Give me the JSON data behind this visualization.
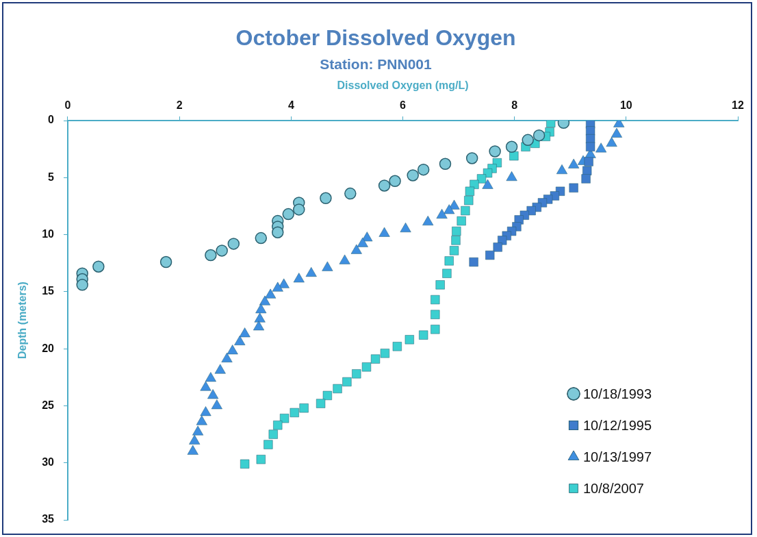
{
  "chart_data": {
    "type": "scatter",
    "title": "October Dissolved Oxygen",
    "subtitle": "Station: PNN001",
    "xlabel": "Dissolved Oxygen (mg/L)",
    "ylabel": "Depth (meters)",
    "xlim": [
      0,
      12
    ],
    "xticks": [
      0,
      2,
      4,
      6,
      8,
      10,
      12
    ],
    "ylim": [
      35,
      0
    ],
    "yticks": [
      0,
      5,
      10,
      15,
      20,
      25,
      30,
      35
    ],
    "grid": false,
    "legend": "bottom right",
    "series": [
      {
        "name": "10/18/1993",
        "color": "#7ec8d8",
        "marker": "circle",
        "x": [
          8.88,
          8.44,
          8.24,
          7.95,
          7.65,
          7.24,
          6.76,
          6.37,
          6.18,
          5.86,
          5.67,
          5.06,
          4.62,
          4.14,
          4.14,
          3.95,
          3.76,
          3.76,
          3.76,
          3.46,
          2.97,
          2.76,
          2.56,
          1.76,
          0.55,
          0.26,
          0.26,
          0.26
        ],
        "values": [
          0.2,
          1.3,
          1.7,
          2.3,
          2.7,
          3.3,
          3.8,
          4.3,
          4.8,
          5.3,
          5.7,
          6.4,
          6.8,
          7.2,
          7.8,
          8.2,
          8.8,
          9.3,
          9.8,
          10.3,
          10.8,
          11.4,
          11.8,
          12.4,
          12.8,
          13.4,
          13.9,
          14.4
        ]
      },
      {
        "name": "10/12/1995",
        "color": "#3f7ccc",
        "marker": "square",
        "x": [
          9.36,
          9.36,
          9.36,
          9.36,
          9.33,
          9.3,
          9.28,
          9.06,
          8.82,
          8.72,
          8.6,
          8.5,
          8.4,
          8.3,
          8.18,
          8.08,
          8.04,
          7.95,
          7.86,
          7.78,
          7.7,
          7.56,
          7.27
        ],
        "values": [
          0.3,
          0.9,
          1.6,
          2.3,
          3.6,
          4.4,
          5.1,
          5.9,
          6.2,
          6.6,
          6.9,
          7.2,
          7.6,
          7.9,
          8.3,
          8.7,
          9.3,
          9.7,
          10.1,
          10.5,
          11.1,
          11.8,
          12.4
        ]
      },
      {
        "name": "10/13/1997",
        "color": "#3f8fe0",
        "marker": "triangle",
        "x": [
          9.87,
          9.83,
          9.74,
          9.55,
          9.36,
          9.23,
          9.06,
          8.85,
          7.95,
          7.52,
          6.92,
          6.83,
          6.7,
          6.45,
          6.05,
          5.67,
          5.36,
          5.28,
          5.17,
          4.96,
          4.65,
          4.36,
          4.14,
          3.87,
          3.76,
          3.63,
          3.53,
          3.46,
          3.44,
          3.42,
          3.17,
          3.08,
          2.95,
          2.85,
          2.73,
          2.56,
          2.47,
          2.6,
          2.67,
          2.47,
          2.4,
          2.33,
          2.27,
          2.24
        ],
        "values": [
          0.3,
          1.2,
          2.0,
          2.5,
          3.0,
          3.6,
          3.9,
          4.4,
          5.0,
          5.7,
          7.5,
          7.9,
          8.3,
          8.9,
          9.5,
          9.9,
          10.3,
          10.8,
          11.4,
          12.3,
          12.9,
          13.4,
          13.9,
          14.4,
          14.7,
          15.3,
          15.9,
          16.6,
          17.4,
          18.1,
          18.7,
          19.4,
          20.2,
          20.9,
          21.9,
          22.6,
          23.4,
          24.1,
          25.0,
          25.6,
          26.4,
          27.3,
          28.1,
          29.0
        ]
      },
      {
        "name": "10/8/2007",
        "color": "#3ccfd0",
        "marker": "square",
        "x": [
          8.65,
          8.63,
          8.56,
          8.37,
          8.2,
          7.99,
          7.69,
          7.6,
          7.52,
          7.41,
          7.28,
          7.2,
          7.18,
          7.12,
          7.05,
          6.96,
          6.95,
          6.92,
          6.83,
          6.79,
          6.67,
          6.58,
          6.58,
          6.58,
          6.37,
          6.12,
          5.9,
          5.68,
          5.51,
          5.35,
          5.17,
          5.0,
          4.83,
          4.65,
          4.53,
          4.23,
          4.06,
          3.88,
          3.76,
          3.68,
          3.59,
          3.46,
          3.17
        ],
        "values": [
          0.2,
          1.0,
          1.4,
          2.0,
          2.3,
          3.1,
          3.7,
          4.2,
          4.6,
          5.1,
          5.6,
          6.2,
          7.0,
          7.9,
          8.8,
          9.7,
          10.5,
          11.4,
          12.3,
          13.4,
          14.4,
          15.7,
          17.0,
          18.3,
          18.8,
          19.2,
          19.8,
          20.4,
          20.9,
          21.6,
          22.2,
          22.9,
          23.5,
          24.1,
          24.8,
          25.2,
          25.6,
          26.1,
          26.7,
          27.5,
          28.4,
          29.7,
          30.1
        ]
      }
    ]
  }
}
